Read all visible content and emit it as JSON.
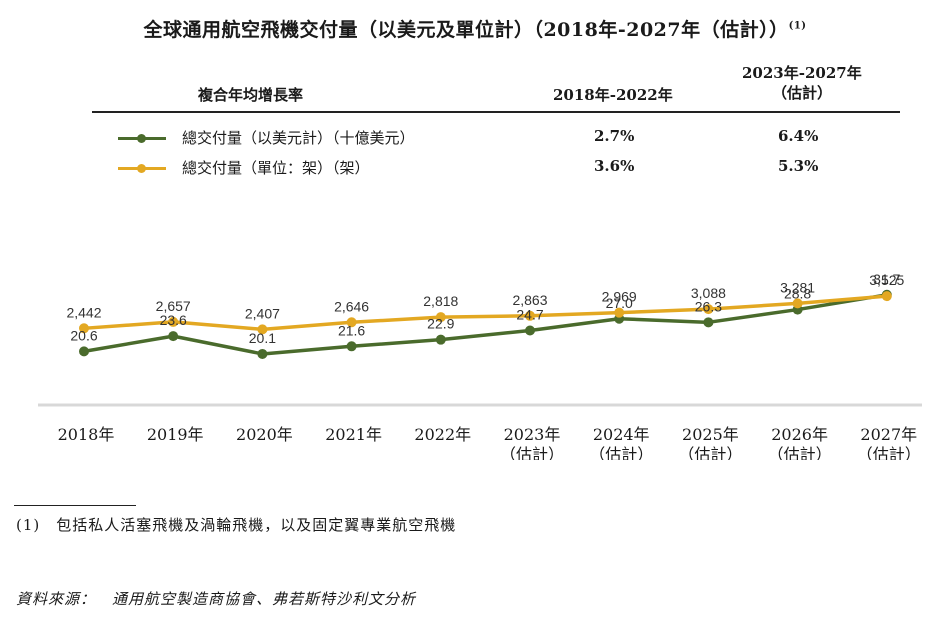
{
  "header": {
    "title": "全球通用航空飛機交付量（以美元及單位計）（2018年-2027年（估計））",
    "footnote_mark": "(1)"
  },
  "table": {
    "label": "複合年均增長率",
    "col1": "2018年-2022年",
    "col2_line1": "2023年-2027年",
    "col2_line2": "（估計）",
    "rows": [
      {
        "label": "總交付量（以美元計）（十億美元）",
        "cagr1": "2.7%",
        "cagr2": "6.4%"
      },
      {
        "label": "總交付量（單位：架）（架）",
        "cagr1": "3.6%",
        "cagr2": "5.3%"
      }
    ]
  },
  "colors": {
    "value_series": "#4a6b2c",
    "unit_series": "#e3a822",
    "axis": "#d8d8d8"
  },
  "chart_data": {
    "type": "line",
    "categories": [
      "2018年",
      "2019年",
      "2020年",
      "2021年",
      "2022年",
      "2023年",
      "2024年",
      "2025年",
      "2026年",
      "2027年"
    ],
    "category_sublabels": [
      "",
      "",
      "",
      "",
      "",
      "（估計）",
      "（估計）",
      "（估計）",
      "（估計）",
      "（估計）"
    ],
    "series": [
      {
        "name": "總交付量（以美元計）（十億美元）",
        "values": [
          20.6,
          23.6,
          20.1,
          21.6,
          22.9,
          24.7,
          27.0,
          26.3,
          28.8,
          31.7
        ],
        "labels": [
          "20.6",
          "23.6",
          "20.1",
          "21.6",
          "22.9",
          "24.7",
          "27.0",
          "26.3",
          "28.8",
          "31.7"
        ]
      },
      {
        "name": "總交付量（單位：架）（架）",
        "values": [
          2442,
          2657,
          2407,
          2646,
          2818,
          2863,
          2969,
          3088,
          3281,
          3525
        ],
        "labels": [
          "2,442",
          "2,657",
          "2,407",
          "2,646",
          "2,818",
          "2,863",
          "2,969",
          "3,088",
          "3,281",
          "3,525"
        ]
      }
    ]
  },
  "footer": {
    "note": "(1)　包括私人活塞飛機及渦輪飛機，以及固定翼專業航空飛機",
    "source": "資料來源：　通用航空製造商協會、弗若斯特沙利文分析"
  }
}
